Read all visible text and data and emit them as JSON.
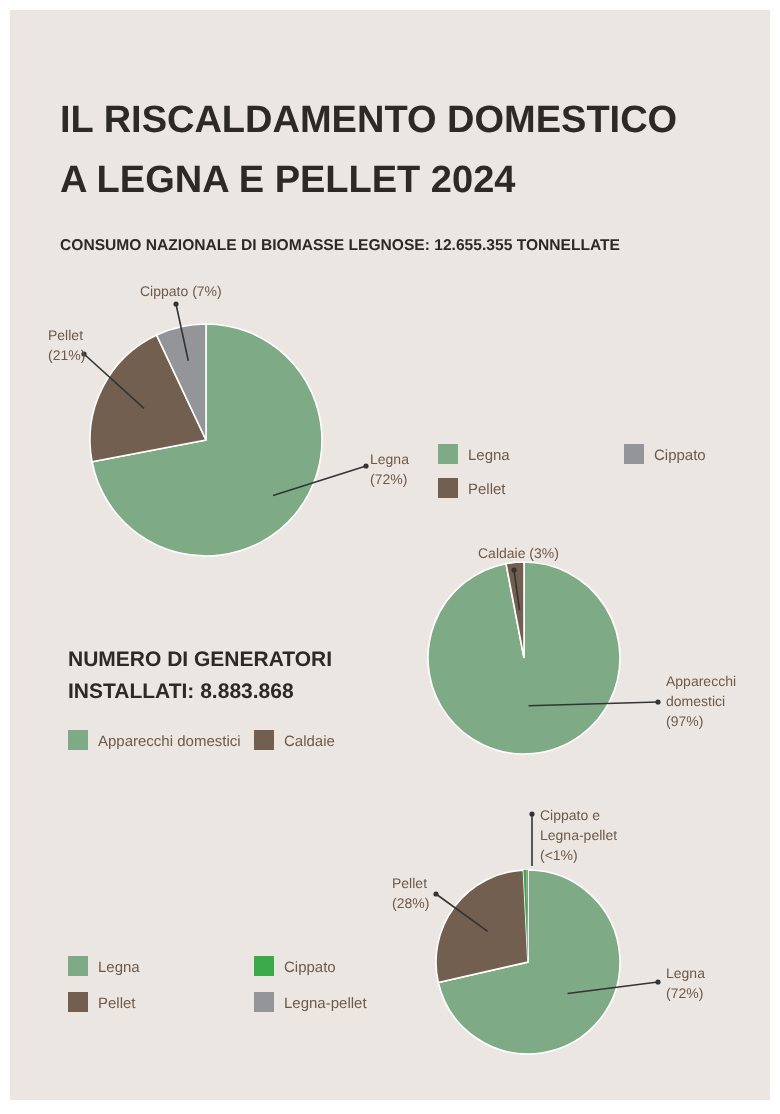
{
  "chart_data": [
    {
      "type": "pie",
      "title": "IL RISCALDAMENTO DOMESTICO A LEGNA E PELLET 2024",
      "subtitle": "CONSUMO NAZIONALE DI BIOMASSE LEGNOSE: 12.655.355 TONNELLATE",
      "categories": [
        "Legna",
        "Pellet",
        "Cippato"
      ],
      "values": [
        72,
        21,
        7
      ],
      "value_labels": [
        "(72%)",
        "(21%)",
        "(7%)"
      ],
      "colors": [
        "#7eab86",
        "#735f4f",
        "#939598"
      ],
      "legend": "right"
    },
    {
      "type": "pie",
      "title": "NUMERO DI GENERATORI INSTALLATI: 8.883.868",
      "categories": [
        "Apparecchi domestici",
        "Caldaie"
      ],
      "values": [
        97,
        3
      ],
      "value_labels": [
        "(97%)",
        "(3%)"
      ],
      "colors": [
        "#7eab86",
        "#735f4f"
      ],
      "legend": "left"
    },
    {
      "type": "pie",
      "categories": [
        "Legna",
        "Pellet",
        "Cippato",
        "Legna-pellet"
      ],
      "values": [
        72,
        28,
        0.5,
        0.3
      ],
      "value_labels": [
        "(72%)",
        "(28%)",
        null,
        null
      ],
      "colors": [
        "#7eab86",
        "#735f4f",
        "#3aaa4a",
        "#939598"
      ],
      "annotations": [
        "Cippato e Legna-pellet (<1%)"
      ],
      "legend": "left"
    }
  ]
}
